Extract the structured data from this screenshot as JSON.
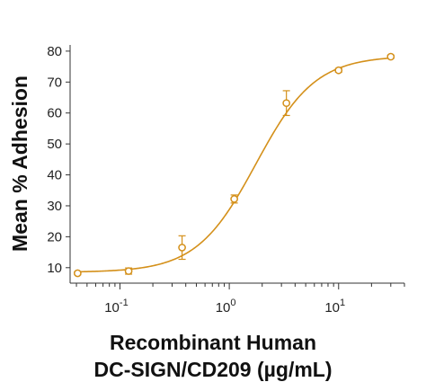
{
  "chart_data": {
    "type": "scatter",
    "title": "",
    "ylabel": "Mean % Adhesion",
    "xlabel_lines": [
      "Recombinant Human",
      "DC-SIGN/CD209 (µg/mL)"
    ],
    "xscale": "log",
    "xlim": [
      0.035,
      40
    ],
    "ylim": [
      5,
      82
    ],
    "yticks": [
      10,
      20,
      30,
      40,
      50,
      60,
      70,
      80
    ],
    "xticks": [
      {
        "value": 0.1,
        "base": "10",
        "exp": "-1"
      },
      {
        "value": 1,
        "base": "10",
        "exp": "0"
      },
      {
        "value": 10,
        "base": "10",
        "exp": "1"
      }
    ],
    "series": [
      {
        "x": [
          0.041,
          0.12,
          0.37,
          1.11,
          3.33,
          10,
          30
        ],
        "y": [
          8.2,
          8.9,
          16.5,
          32.2,
          63.2,
          73.8,
          78.2
        ],
        "error": [
          0.5,
          1.0,
          3.8,
          1.3,
          4.0,
          0.6,
          0.5
        ]
      }
    ],
    "fit": {
      "bottom": 8.5,
      "top": 78.5,
      "ec50": 1.75,
      "hill": 1.6
    },
    "color": "#d4901a",
    "grid": false
  }
}
